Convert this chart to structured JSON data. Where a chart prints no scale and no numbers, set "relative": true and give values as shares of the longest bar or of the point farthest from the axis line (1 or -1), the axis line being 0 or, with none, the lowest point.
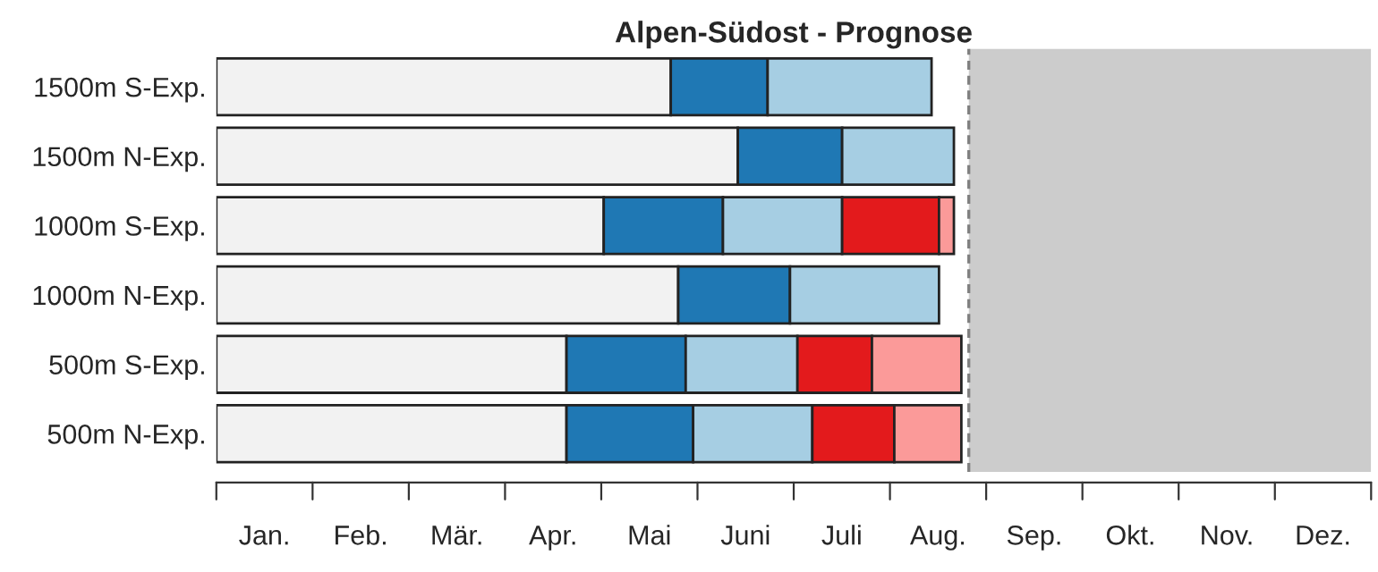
{
  "chart_data": {
    "type": "bar",
    "orientation": "horizontal",
    "stacked": true,
    "relative": true,
    "title": "Alpen-Südost - Prognose",
    "categories": [
      "1500m S-Exp.",
      "1500m N-Exp.",
      "1000m S-Exp.",
      "1000m N-Exp.",
      "500m S-Exp.",
      "500m N-Exp."
    ],
    "series": [
      {
        "color": "#f2f2f2",
        "values": [
          0.61,
          0.7,
          0.52,
          0.62,
          0.47,
          0.47
        ]
      },
      {
        "color": "#1f78b4",
        "values": [
          0.13,
          0.14,
          0.16,
          0.15,
          0.16,
          0.17
        ]
      },
      {
        "color": "#a6cee3",
        "values": [
          0.22,
          0.15,
          0.16,
          0.2,
          0.15,
          0.16
        ]
      },
      {
        "color": "#e31a1c",
        "values": [
          null,
          null,
          0.13,
          null,
          0.1,
          0.11
        ]
      },
      {
        "color": "#fb9a99",
        "values": [
          null,
          null,
          0.02,
          null,
          0.12,
          0.09
        ]
      }
    ],
    "annotations": [
      "Jan.",
      "Feb.",
      "Mär.",
      "Apr.",
      "Mai",
      "Juni",
      "Juli",
      "Aug.",
      "Sep.",
      "Okt.",
      "Nov.",
      "Dez."
    ],
    "bands": [
      {
        "axis": "x",
        "from": 1.01,
        "to": 1.55,
        "color": "#cccccc"
      }
    ],
    "ref_lines": [
      {
        "axis": "x",
        "value": 1.01,
        "color": "#808080",
        "line_style": "dashed"
      }
    ],
    "grid": false,
    "legend": false
  }
}
